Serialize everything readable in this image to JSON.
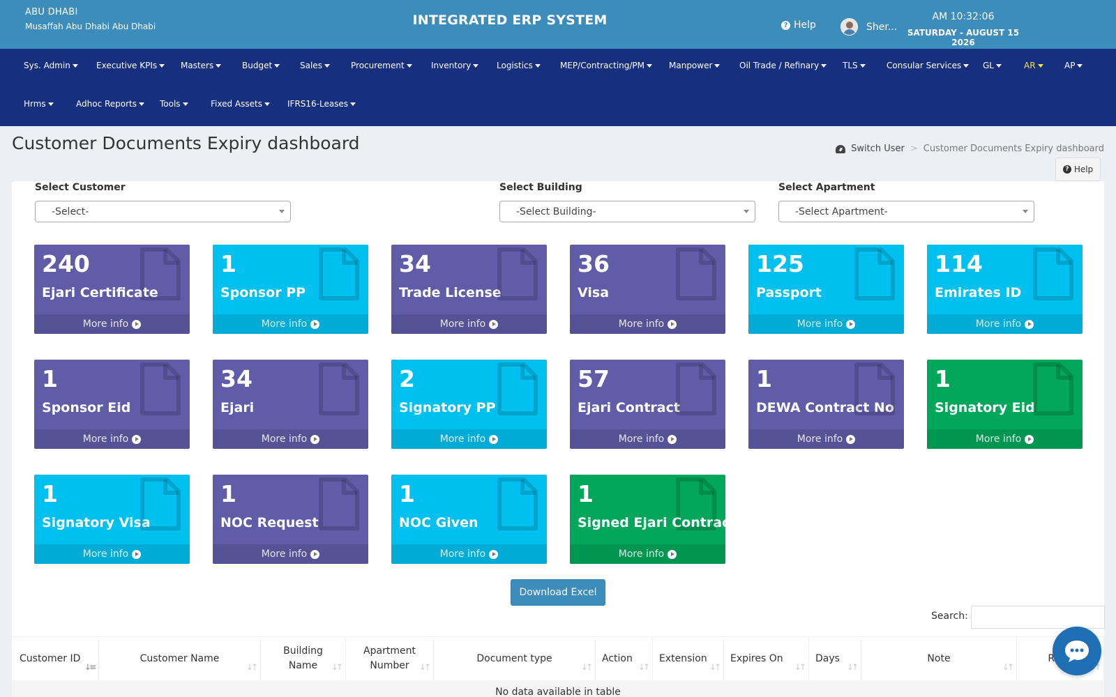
{
  "header": {
    "org_name": "ABU DHABI",
    "org_address": "Musaffah Abu Dhabi Abu Dhabi",
    "system_title": "INTEGRATED ERP SYSTEM",
    "help_label": "Help",
    "user_name": "Sher...",
    "time": "AM 10:32:06",
    "date": "SATURDAY - AUGUST 15 2026"
  },
  "nav": {
    "row1": [
      "Sys. Admin",
      "Executive KPIs",
      "Masters",
      "Budget",
      "Sales",
      "Procurement",
      "Inventory",
      "Logistics",
      "MEP/Contracting/PM",
      "Manpower",
      "Oil Trade / Refinary",
      "TLS",
      "Consular Services",
      "GL",
      "AR",
      "AP"
    ],
    "row2": [
      "Hrms",
      "Adhoc Reports",
      "Tools",
      "Fixed Assets",
      "IFRS16-Leases"
    ],
    "active": "AR",
    "active_color": "#f5e14a"
  },
  "page": {
    "title": "Customer Documents Expiry dashboard",
    "breadcrumb_home": "Switch User",
    "breadcrumb_current": "Customer Documents Expiry dashboard",
    "help_button": "Help"
  },
  "filters": {
    "customer_label": "Select Customer",
    "customer_value": "-Select-",
    "building_label": "Select Building",
    "building_value": "-Select Building-",
    "apartment_label": "Select Apartment",
    "apartment_value": "-Select Apartment-"
  },
  "tiles": [
    {
      "count": "240",
      "label": "Ejari Certificate",
      "color": "purple"
    },
    {
      "count": "1",
      "label": "Sponsor PP",
      "color": "aqua"
    },
    {
      "count": "34",
      "label": "Trade License",
      "color": "purple"
    },
    {
      "count": "36",
      "label": "Visa",
      "color": "purple"
    },
    {
      "count": "125",
      "label": "Passport",
      "color": "aqua"
    },
    {
      "count": "114",
      "label": "Emirates ID",
      "color": "aqua"
    },
    {
      "count": "1",
      "label": "Sponsor Eid",
      "color": "purple"
    },
    {
      "count": "34",
      "label": "Ejari",
      "color": "purple"
    },
    {
      "count": "2",
      "label": "Signatory PP",
      "color": "aqua"
    },
    {
      "count": "57",
      "label": "Ejari Contract",
      "color": "purple"
    },
    {
      "count": "1",
      "label": "DEWA Contract No",
      "color": "purple"
    },
    {
      "count": "1",
      "label": "Signatory Eid",
      "color": "green"
    },
    {
      "count": "1",
      "label": "Signatory Visa",
      "color": "aqua"
    },
    {
      "count": "1",
      "label": "NOC Request",
      "color": "purple"
    },
    {
      "count": "1",
      "label": "NOC Given",
      "color": "aqua"
    },
    {
      "count": "1",
      "label": "Signed Ejari Contract",
      "color": "green"
    }
  ],
  "tile_footer": "More info",
  "colors": {
    "purple": "#605ca8",
    "aqua": "#00c0ef",
    "green": "#00a65a",
    "header": "#3c8dbc",
    "nav": "#16307f"
  },
  "actions": {
    "download_excel": "Download Excel",
    "search_label": "Search:"
  },
  "table": {
    "columns": [
      "Customer ID",
      "Customer Name",
      "Building Name",
      "Apartment Number",
      "Document type",
      "Action",
      "Extension",
      "Expires On",
      "Days",
      "Note",
      "Rene"
    ],
    "empty_message": "No data available in table"
  }
}
